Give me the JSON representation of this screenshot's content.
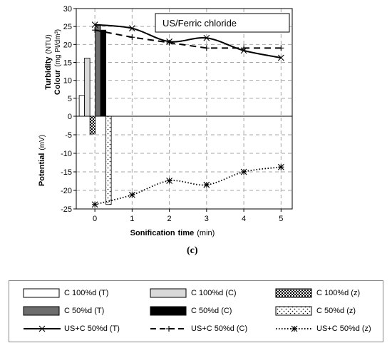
{
  "panel_label": "(c)",
  "chart_data": {
    "type": "bar+line",
    "title": "US/Ferric chloride",
    "xlabel": "Sonification time (min)",
    "xlabel_parts": [
      "Sonification",
      "time",
      "(min)"
    ],
    "xticks": [
      "0",
      "1",
      "2",
      "3",
      "4",
      "5"
    ],
    "xlim": [
      -0.5,
      5.3
    ],
    "upper_axis": {
      "label_line1": "Turbidity  (NTU)",
      "label_line2": "Colour (mg Pt/dm³)",
      "label_line1_parts": [
        "Turbidity",
        "(NTU)"
      ],
      "label_line2_parts": [
        "Colour",
        "(mg Pt/dm³)"
      ],
      "ylim": [
        0,
        30
      ],
      "yticks": [
        "0",
        "5",
        "10",
        "15",
        "20",
        "25",
        "30"
      ]
    },
    "lower_axis": {
      "label": "Potential  (mV)",
      "label_parts": [
        "Potential",
        "(mV)"
      ],
      "ylim": [
        -25,
        0
      ],
      "yticks": [
        "-5",
        "-10",
        "-15",
        "-20",
        "-25"
      ]
    },
    "bars": [
      {
        "name": "C 100%d (T)",
        "x": 0,
        "value": 5.8,
        "style": "white"
      },
      {
        "name": "C 100%d (C)",
        "x": 0,
        "value": 16.2,
        "style": "lightgray"
      },
      {
        "name": "C 100%d (z)",
        "x": 0,
        "value": -4.8,
        "style": "checker"
      },
      {
        "name": "C 50%d (T)",
        "x": 0,
        "value": 25.5,
        "style": "darkgray"
      },
      {
        "name": "C 50%d (C)",
        "x": 0,
        "value": 24.0,
        "style": "black"
      },
      {
        "name": "C 50%d (z)",
        "x": 0,
        "value": -23.8,
        "style": "dotted"
      }
    ],
    "series": [
      {
        "name": "US+C 50%d (T)",
        "axis": "upper",
        "style": "solid",
        "marker": "x",
        "x": [
          0,
          1,
          2,
          3,
          4,
          5
        ],
        "values": [
          25.5,
          24.5,
          20.8,
          21.8,
          18.3,
          16.3
        ]
      },
      {
        "name": "US+C 50%d (C)",
        "axis": "upper",
        "style": "dashed",
        "marker": "+",
        "x": [
          0,
          1,
          2,
          3,
          4,
          5
        ],
        "values": [
          24.0,
          22.0,
          20.5,
          19.0,
          19.0,
          19.0
        ]
      },
      {
        "name": "US+C 50%d (z)",
        "axis": "lower",
        "style": "dotted",
        "marker": "asterisk",
        "x": [
          0,
          1,
          2,
          3,
          4,
          5
        ],
        "values": [
          -23.8,
          -21.2,
          -17.4,
          -18.5,
          -15.0,
          -13.7
        ]
      }
    ],
    "grid": true,
    "legend_placement": "bottom"
  },
  "legend": {
    "items": [
      {
        "label": "C 100%d (T)",
        "swatch": "white"
      },
      {
        "label": "C 100%d (C)",
        "swatch": "lightgray"
      },
      {
        "label": "C 100%d (z)",
        "swatch": "checker"
      },
      {
        "label": "C 50%d (T)",
        "swatch": "darkgray"
      },
      {
        "label": "C 50%d (C)",
        "swatch": "black"
      },
      {
        "label": "C 50%d (z)",
        "swatch": "dotted"
      },
      {
        "label": "US+C 50%d (T)",
        "swatch": "line-x"
      },
      {
        "label": "US+C 50%d (C)",
        "swatch": "line-plus"
      },
      {
        "label": "US+C 50%d (z)",
        "swatch": "line-asterisk"
      }
    ]
  },
  "colors": {
    "bar_darkgray": "#6d6d6d",
    "bar_lightgray": "#d9d9d9",
    "grid": "#a6a6a6",
    "series_line": "#000000"
  }
}
